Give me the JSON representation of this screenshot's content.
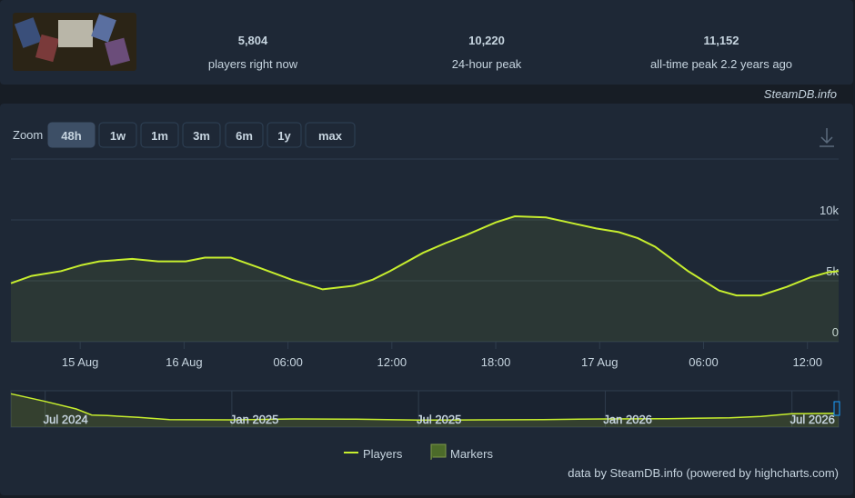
{
  "header": {
    "stats": [
      {
        "value": "5,804",
        "label": "players right now"
      },
      {
        "value": "10,220",
        "label": "24-hour peak"
      },
      {
        "value": "11,152",
        "label": "all-time peak 2.2 years ago"
      }
    ],
    "source": "SteamDB.info"
  },
  "zoom": {
    "label": "Zoom",
    "buttons": [
      "48h",
      "1w",
      "1m",
      "3m",
      "6m",
      "1y",
      "max"
    ],
    "active": 0
  },
  "chart_data": {
    "type": "area",
    "series": [
      {
        "name": "Players",
        "color": "#c7ee2e",
        "x": [
          -4,
          -2.8,
          -1.1,
          0.1,
          1.1,
          3,
          4.5,
          6.1,
          7.2,
          8.7,
          10.3,
          12.2,
          14,
          15.8,
          16.9,
          17.9,
          19.8,
          21.1,
          22.2,
          24,
          25.1,
          26.9,
          28.2,
          29.8,
          31.1,
          32.2,
          33.2,
          35.1,
          36.9,
          37.9,
          39.3,
          40.8,
          42.2,
          43.2,
          43.8
        ],
        "values": [
          4800,
          5400,
          5800,
          6300,
          6600,
          6800,
          6600,
          6600,
          6900,
          6900,
          6100,
          5100,
          4300,
          4600,
          5100,
          5800,
          7300,
          8100,
          8700,
          9800,
          10300,
          10200,
          9800,
          9300,
          9000,
          8500,
          7800,
          5800,
          4200,
          3800,
          3800,
          4500,
          5300,
          5700,
          5800
        ]
      }
    ],
    "legend": [
      "Players",
      "Markers"
    ],
    "xlim": [
      -4,
      43.8
    ],
    "xticks": [
      {
        "value": 0,
        "label": "15 Aug"
      },
      {
        "value": 6,
        "label": "16 Aug"
      },
      {
        "value": 12,
        "label": "06:00"
      },
      {
        "value": 18,
        "label": "12:00"
      },
      {
        "value": 24,
        "label": "18:00"
      },
      {
        "value": 30,
        "label": "17 Aug"
      },
      {
        "value": 36,
        "label": "06:00"
      },
      {
        "value": 42,
        "label": "12:00"
      }
    ],
    "ylim": [
      0,
      15000
    ],
    "yticks": [
      {
        "value": 0,
        "label": "0"
      },
      {
        "value": 5000,
        "label": "5k"
      },
      {
        "value": 10000,
        "label": "10k"
      }
    ],
    "grid": true,
    "navigator": {
      "x": [
        -1.1,
        0,
        1,
        1.5,
        2,
        3,
        4,
        6,
        8,
        10,
        12,
        14,
        16,
        18,
        20,
        22,
        23,
        24,
        25.5
      ],
      "values": [
        11000,
        8500,
        6000,
        4000,
        3800,
        3200,
        2500,
        2400,
        2700,
        2600,
        2300,
        2400,
        2500,
        2700,
        2800,
        3100,
        3500,
        4400,
        4600
      ],
      "xlim": [
        -1.1,
        25.5
      ],
      "ylim": [
        0,
        12000
      ],
      "xticks": [
        {
          "value": 0,
          "label": "Jul 2024"
        },
        {
          "value": 6,
          "label": "Jan 2025"
        },
        {
          "value": 12,
          "label": "Jul 2025"
        },
        {
          "value": 18,
          "label": "Jan 2026"
        },
        {
          "value": 24,
          "label": "Jul 2026"
        }
      ]
    },
    "credit": "data by SteamDB.info (powered by highcharts.com)"
  }
}
